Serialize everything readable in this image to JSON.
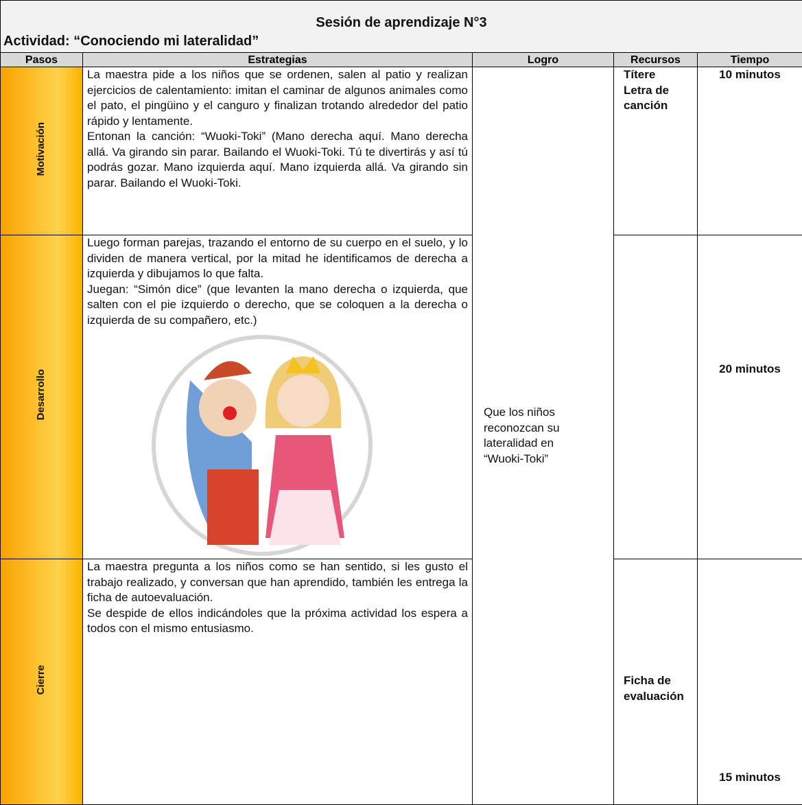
{
  "header": {
    "title": "Sesión de aprendizaje N°3",
    "activity": "Actividad: “Conociendo mi lateralidad”"
  },
  "table": {
    "columns": [
      "Pasos",
      "Estrategias",
      "Logro",
      "Recursos",
      "Tiempo"
    ],
    "achievement": "Que los niños reconozcan su lateralidad en “Wuoki-Toki”",
    "rows": [
      {
        "step": "Motivación",
        "strategies": [
          "La maestra pide a los niños que se ordenen, salen al patio y realizan ejercicios de calentamiento: imitan el caminar de algunos animales como el pato, el pingüino y el canguro y finalizan trotando alrededor del patio rápido y lentamente.",
          "Entonan la canción: “Wuoki-Toki” (Mano derecha aquí. Mano derecha allá. Va girando sin parar. Bailando el Wuoki-Toki. Tú te divertirás y así tú podrás gozar. Mano izquierda aquí. Mano izquierda allá. Va girando sin parar. Bailando el Wuoki-Toki."
        ],
        "resources": [
          "Títere",
          "Letra de canción"
        ],
        "time": "10 minutos"
      },
      {
        "step": "Desarrollo",
        "strategies": [
          "Luego forman parejas, trazando el entorno de su cuerpo en el suelo, y lo dividen de manera vertical, por la mitad he identificamos de derecha a izquierda y dibujamos lo que falta.",
          "Juegan: “Simón dice” (que levanten la mano derecha o izquierda, que salten con el pie izquierdo o derecho, que se coloquen a la derecha o izquierda de su compañero, etc.)"
        ],
        "resources": [],
        "time": "20 minutos"
      },
      {
        "step": "Cierre",
        "strategies": [
          "La maestra pregunta a los niños como se han sentido, si les gusto el trabajo realizado, y conversan que han aprendido, también les entrega la ficha de autoevaluación.",
          "Se despide de ellos indicándoles que la próxima actividad los espera a todos con el mismo entusiasmo."
        ],
        "resources": [
          "Ficha de evaluación"
        ],
        "time": "15 minutos"
      }
    ]
  }
}
